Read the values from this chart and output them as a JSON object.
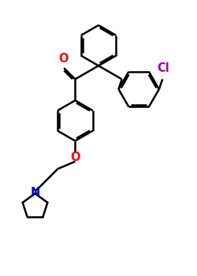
{
  "bg": "#ffffff",
  "lc": "#000000",
  "oc": "#ff0000",
  "nc": "#0000cd",
  "clc": "#9900aa",
  "lw": 1.8,
  "dpi": 100,
  "figsize": [
    2.5,
    3.5
  ],
  "xlim": [
    -1.5,
    8.5
  ],
  "ylim": [
    -1.0,
    13.0
  ]
}
